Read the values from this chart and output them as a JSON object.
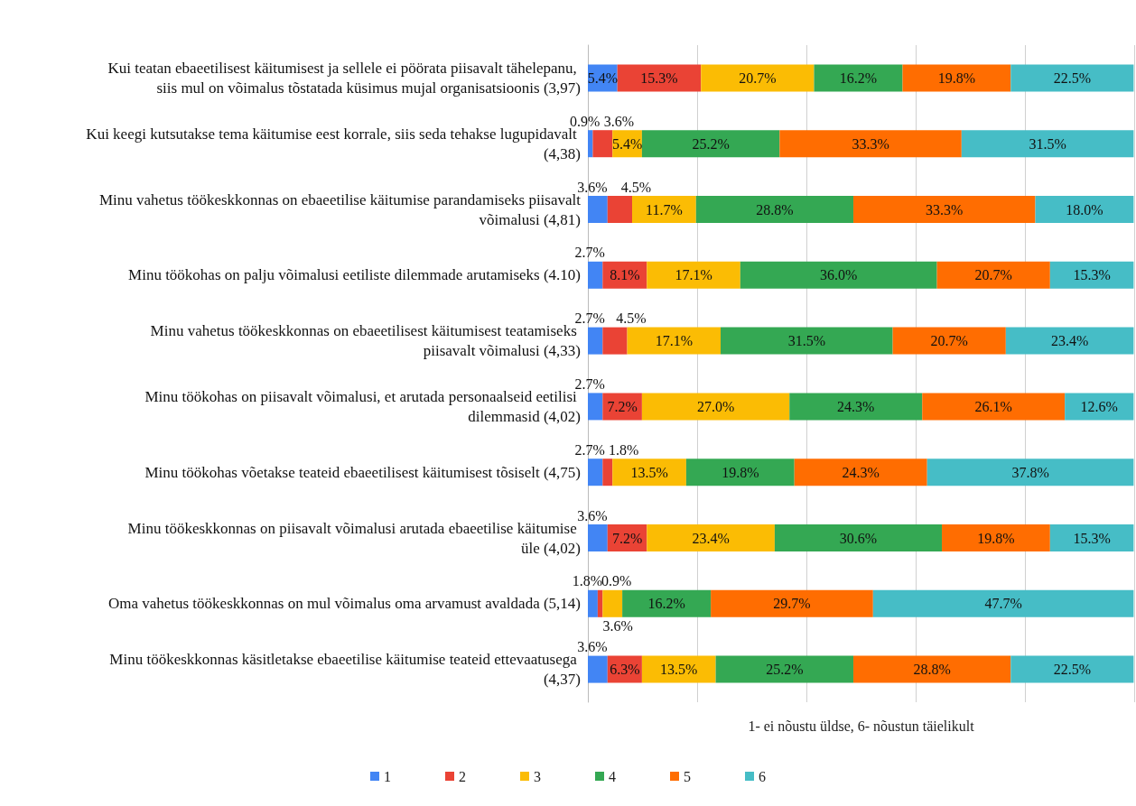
{
  "chart_data": {
    "type": "bar",
    "orientation": "horizontal",
    "stacked": true,
    "categories": [
      "Kui teatan ebaeetilisest käitumisest ja sellele ei pöörata piisavalt tähelepanu, siis mul on võimalus tõstatada küsimus mujal organisatsioonis (3,97)",
      "Kui keegi kutsutakse tema käitumise eest korrale, siis seda tehakse lugupidavalt (4,38)",
      "Minu vahetus töökeskkonnas on ebaeetilise käitumise parandamiseks piisavalt võimalusi (4,81)",
      "Minu töökohas on palju võimalusi eetiliste dilemmade arutamiseks (4.10)",
      "Minu vahetus töökeskkonnas on ebaeetilisest käitumisest teatamiseks piisavalt võimalusi (4,33)",
      "Minu töökohas on piisavalt võimalusi, et arutada personaalseid eetilisi dilemmasid (4,02)",
      "Minu töökohas võetakse teateid ebaeetilisest käitumisest tõsiselt (4,75)",
      "Minu töökeskkonnas on piisavalt võimalusi arutada ebaeetilise käitumise üle (4,02)",
      "Oma vahetus töökeskkonnas on mul võimalus oma arvamust avaldada (5,14)",
      "Minu töökeskkonnas käsitletakse ebaeetilise käitumise teateid ettevaatusega (4,37)"
    ],
    "series": [
      {
        "name": "1",
        "color": "#4285f4",
        "values": [
          5.4,
          0.9,
          3.6,
          2.7,
          2.7,
          2.7,
          2.7,
          3.6,
          1.8,
          3.6
        ],
        "value_labels": [
          "5.4%",
          "0.9%",
          "3.6%",
          "2.7%",
          "2.7%",
          "2.7%",
          "2.7%",
          "3.6%",
          "1.8%",
          "3.6%"
        ]
      },
      {
        "name": "2",
        "color": "#ea4335",
        "values": [
          15.3,
          3.6,
          4.5,
          8.1,
          4.5,
          7.2,
          1.8,
          7.2,
          0.9,
          6.3
        ],
        "value_labels": [
          "15.3%",
          "3.6%",
          "4.5%",
          "8.1%",
          "4.5%",
          "7.2%",
          "1.8%",
          "7.2%",
          "0.9%",
          "6.3%"
        ]
      },
      {
        "name": "3",
        "color": "#fbbc04",
        "values": [
          20.7,
          5.4,
          11.7,
          17.1,
          17.1,
          27.0,
          13.5,
          23.4,
          3.6,
          13.5
        ],
        "value_labels": [
          "20.7%",
          "5.4%",
          "11.7%",
          "17.1%",
          "17.1%",
          "27.0%",
          "13.5%",
          "23.4%",
          "3.6%",
          "13.5%"
        ]
      },
      {
        "name": "4",
        "color": "#34a853",
        "values": [
          16.2,
          25.2,
          28.8,
          36.0,
          31.5,
          24.3,
          19.8,
          30.6,
          16.2,
          25.2
        ],
        "value_labels": [
          "16.2%",
          "25.2%",
          "28.8%",
          "36.0%",
          "31.5%",
          "24.3%",
          "19.8%",
          "30.6%",
          "16.2%",
          "25.2%"
        ]
      },
      {
        "name": "5",
        "color": "#ff6d01",
        "values": [
          19.8,
          33.3,
          33.3,
          20.7,
          20.7,
          26.1,
          24.3,
          19.8,
          29.7,
          28.8
        ],
        "value_labels": [
          "19.8%",
          "33.3%",
          "33.3%",
          "20.7%",
          "20.7%",
          "26.1%",
          "24.3%",
          "19.8%",
          "29.7%",
          "28.8%"
        ]
      },
      {
        "name": "6",
        "color": "#46bdc6",
        "values": [
          22.5,
          31.5,
          18.0,
          15.3,
          23.4,
          12.6,
          37.8,
          15.3,
          47.7,
          22.5
        ],
        "value_labels": [
          "22.5%",
          "31.5%",
          "18.0%",
          "15.3%",
          "23.4%",
          "12.6%",
          "37.8%",
          "15.3%",
          "47.7%",
          "22.5%"
        ]
      }
    ],
    "xlabel": "1- ei nõustu üldse, 6- nõustun täielikult",
    "xlim": [
      0,
      100
    ],
    "xticks": [
      {
        "value": 0,
        "label": null
      },
      {
        "value": 20,
        "label": null
      },
      {
        "value": 40,
        "label": null
      },
      {
        "value": 60,
        "label": null
      },
      {
        "value": 80,
        "label": null
      },
      {
        "value": 100,
        "label": null
      }
    ],
    "tick_labels": "y",
    "grid": "x",
    "legend": "bottom"
  }
}
